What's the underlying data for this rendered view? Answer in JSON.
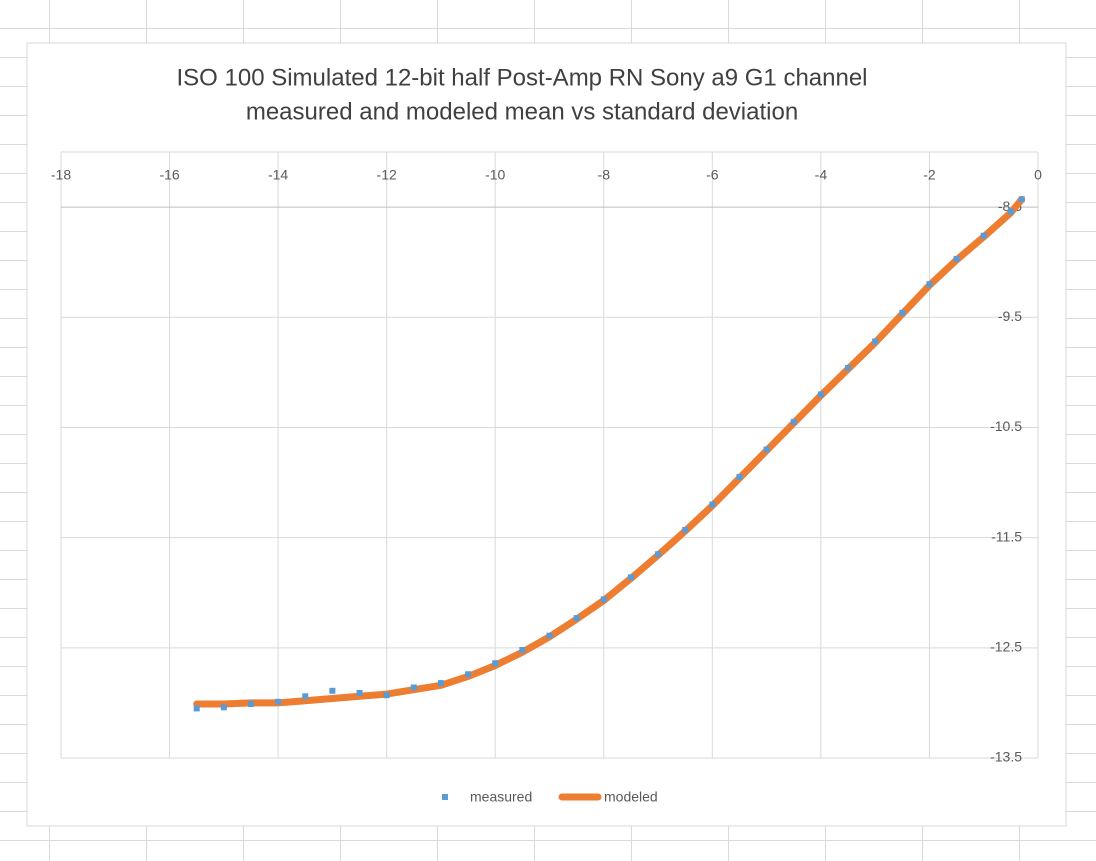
{
  "chart_data": {
    "type": "scatter-line",
    "title": [
      "ISO 100 Simulated 12-bit half Post-Amp RN Sony a9 G1 channel",
      "measured and modeled mean vs standard deviation"
    ],
    "x": [
      -15.5,
      -15,
      -14.5,
      -14,
      -13.5,
      -13,
      -12.5,
      -12,
      -11.5,
      -11,
      -10.5,
      -10,
      -9.5,
      -9,
      -8.5,
      -8,
      -7.5,
      -7,
      -6.5,
      -6,
      -5.5,
      -5,
      -4.5,
      -4,
      -3.5,
      -3,
      -2.5,
      -2,
      -1.5,
      -1,
      -0.5,
      -0.3
    ],
    "series": [
      {
        "name": "measured",
        "color": "#5b9bd5",
        "marker": "square",
        "values": [
          -13.05,
          -13.04,
          -13.01,
          -12.99,
          -12.94,
          -12.89,
          -12.91,
          -12.93,
          -12.86,
          -12.82,
          -12.74,
          -12.64,
          -12.52,
          -12.39,
          -12.23,
          -12.06,
          -11.86,
          -11.65,
          -11.43,
          -11.2,
          -10.95,
          -10.7,
          -10.45,
          -10.2,
          -9.96,
          -9.72,
          -9.46,
          -9.2,
          -8.97,
          -8.76,
          -8.54,
          -8.43
        ]
      },
      {
        "name": "modeled",
        "color": "#ed7d31",
        "marker": "line",
        "values": [
          -13.01,
          -13.01,
          -13.0,
          -13.0,
          -12.98,
          -12.96,
          -12.94,
          -12.92,
          -12.88,
          -12.84,
          -12.76,
          -12.66,
          -12.54,
          -12.4,
          -12.24,
          -12.07,
          -11.87,
          -11.66,
          -11.44,
          -11.21,
          -10.96,
          -10.71,
          -10.46,
          -10.21,
          -9.97,
          -9.73,
          -9.47,
          -9.21,
          -8.98,
          -8.77,
          -8.55,
          -8.43
        ]
      }
    ],
    "xlim": [
      -18,
      0
    ],
    "xticks": [
      -18,
      -16,
      -14,
      -12,
      -10,
      -8,
      -6,
      -4,
      -2,
      0
    ],
    "ylim": [
      -13.5,
      -8
    ],
    "yticks": [
      -8.5,
      -9.5,
      -10.5,
      -11.5,
      -12.5,
      -13.5
    ],
    "grid": true,
    "legend": "bottom"
  }
}
